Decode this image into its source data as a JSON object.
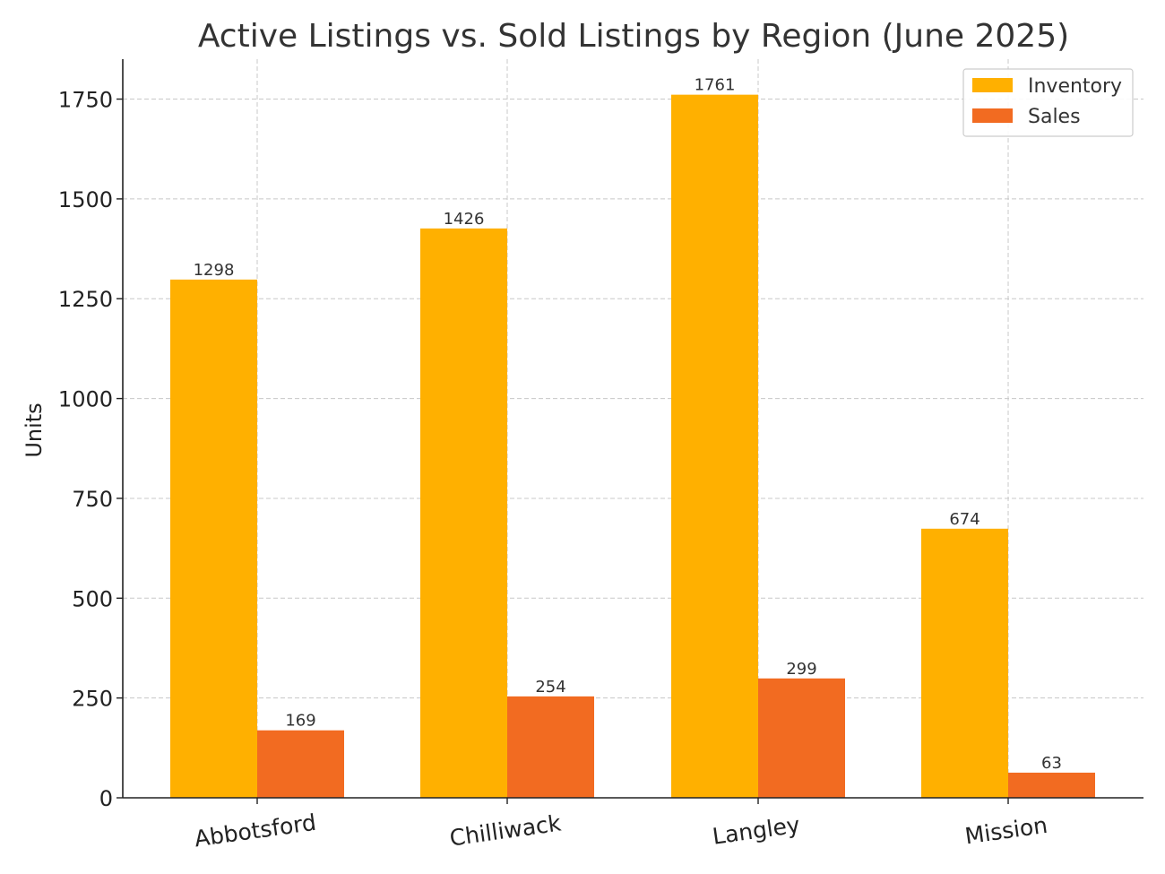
{
  "chart_data": {
    "type": "bar",
    "title": "Active Listings vs. Sold Listings by Region (June 2025)",
    "xlabel": "",
    "ylabel": "Units",
    "categories": [
      "Abbotsford",
      "Chilliwack",
      "Langley",
      "Mission"
    ],
    "series": [
      {
        "name": "Inventory",
        "color": "#FFB000",
        "values": [
          1298,
          1426,
          1761,
          674
        ]
      },
      {
        "name": "Sales",
        "color": "#F26B21",
        "values": [
          169,
          254,
          299,
          63
        ]
      }
    ],
    "ylim": [
      0,
      1850
    ],
    "yticks": [
      0,
      250,
      500,
      750,
      1000,
      1250,
      1500,
      1750
    ],
    "grid": true,
    "legend_position": "top-right",
    "data_labels": true
  }
}
